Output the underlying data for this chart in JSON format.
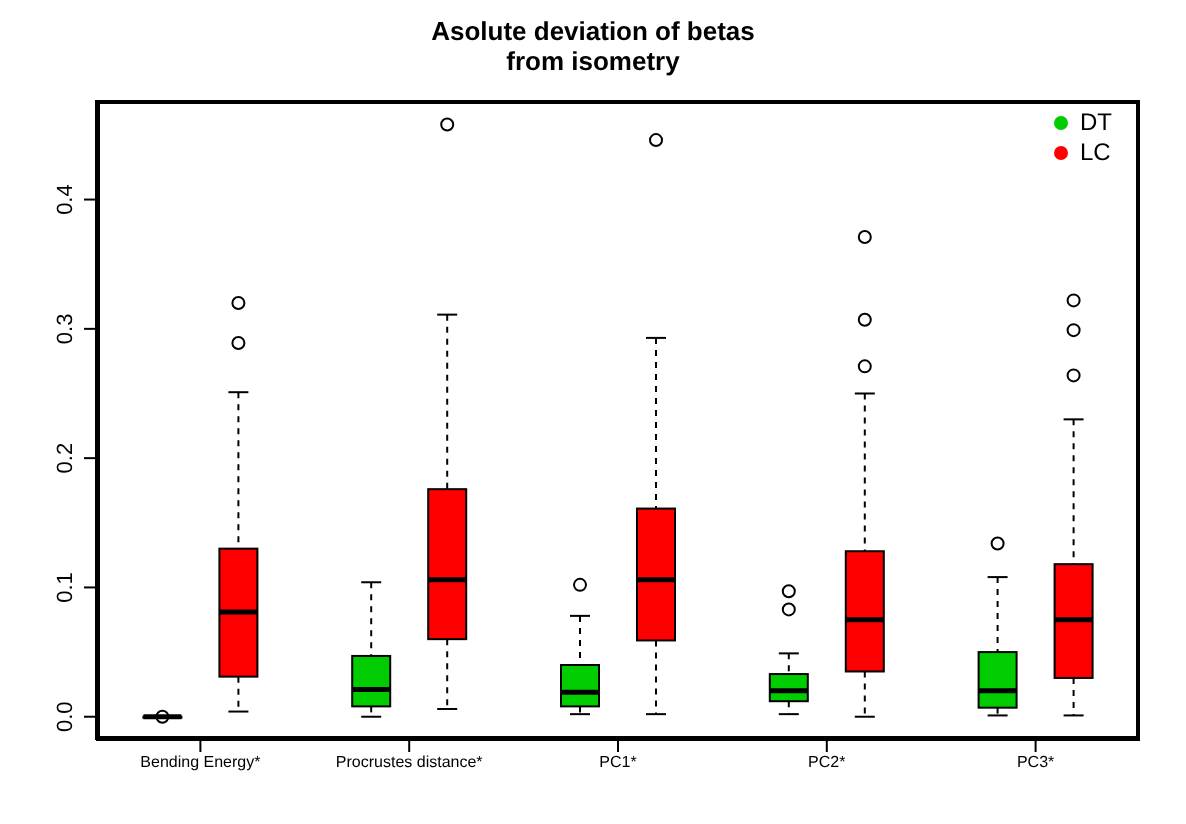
{
  "chart_data": {
    "type": "box",
    "title": "Asolute deviation of betas\nfrom isometry",
    "categories": [
      "Bending Energy*",
      "Procrustes distance*",
      "PC1*",
      "PC2*",
      "PC3*"
    ],
    "series": [
      {
        "name": "DT",
        "color": "#00cc00",
        "boxes": [
          {
            "low": 0,
            "q1": 0,
            "median": 0,
            "q3": 0,
            "high": 0,
            "outliers": [
              0
            ]
          },
          {
            "low": 0,
            "q1": 0.008,
            "median": 0.021,
            "q3": 0.047,
            "high": 0.104
          },
          {
            "low": 0.002,
            "q1": 0.008,
            "median": 0.019,
            "q3": 0.04,
            "high": 0.078,
            "outliers": [
              0.102
            ]
          },
          {
            "low": 0.002,
            "q1": 0.012,
            "median": 0.02,
            "q3": 0.033,
            "high": 0.049,
            "outliers": [
              0.083,
              0.097
            ]
          },
          {
            "low": 0.001,
            "q1": 0.007,
            "median": 0.02,
            "q3": 0.05,
            "high": 0.108,
            "outliers": [
              0.134
            ]
          }
        ]
      },
      {
        "name": "LC",
        "color": "#ff0000",
        "boxes": [
          {
            "low": 0.004,
            "q1": 0.031,
            "median": 0.081,
            "q3": 0.13,
            "high": 0.251,
            "outliers": [
              0.289,
              0.32
            ]
          },
          {
            "low": 0.006,
            "q1": 0.06,
            "median": 0.106,
            "q3": 0.176,
            "high": 0.311,
            "outliers": [
              0.458
            ]
          },
          {
            "low": 0.002,
            "q1": 0.059,
            "median": 0.106,
            "q3": 0.161,
            "high": 0.293,
            "outliers": [
              0.446
            ]
          },
          {
            "low": 0,
            "q1": 0.035,
            "median": 0.075,
            "q3": 0.128,
            "high": 0.25,
            "outliers": [
              0.271,
              0.307,
              0.371
            ]
          },
          {
            "low": 0.001,
            "q1": 0.03,
            "median": 0.075,
            "q3": 0.118,
            "high": 0.23,
            "outliers": [
              0.264,
              0.299,
              0.322
            ]
          }
        ]
      }
    ],
    "ylim": [
      -0.018,
      0.477
    ],
    "yticks": [
      {
        "value": 0,
        "label": "0.0"
      },
      0.1,
      0.2,
      0.3,
      0.4
    ],
    "legend": "top right",
    "grid": false
  }
}
